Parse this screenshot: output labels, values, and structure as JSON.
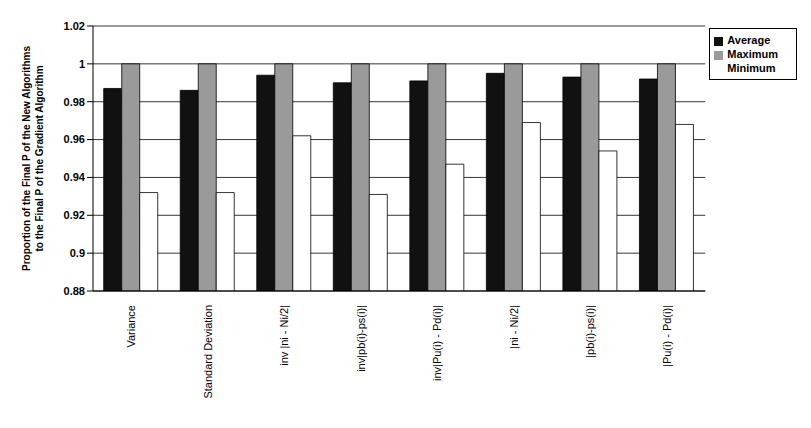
{
  "chart_data": {
    "type": "bar",
    "y_label": "Proportion of the Final P of the New Algorithms to the Final P of the Gradient Algorithm",
    "categories": [
      "Variance",
      "Standard Deviation",
      "inv |ni - Ni/2|",
      "inv|pb(i)-ps(i)|",
      "inv|Pu(i) - Pd(i)|",
      "|ni - Ni/2|",
      "|pb(i)-ps(i)|",
      "|Pu(i) - Pd(i)|"
    ],
    "series": [
      {
        "name": "Average",
        "color": "#111111",
        "values": [
          0.987,
          0.986,
          0.994,
          0.99,
          0.991,
          0.995,
          0.993,
          0.992
        ]
      },
      {
        "name": "Maximum",
        "color": "#9a9a9a",
        "values": [
          1,
          1,
          1,
          1,
          1,
          1,
          1,
          1
        ]
      },
      {
        "name": "Minimum",
        "color": "#ffffff",
        "values": [
          0.932,
          0.932,
          0.962,
          0.931,
          0.947,
          0.969,
          0.954,
          0.968
        ]
      }
    ],
    "ylim": [
      0.88,
      1.02
    ],
    "yticks": [
      0.88,
      0.9,
      0.92,
      0.94,
      0.96,
      0.98,
      1,
      1.02
    ],
    "grid": true,
    "legend": "top-right"
  }
}
